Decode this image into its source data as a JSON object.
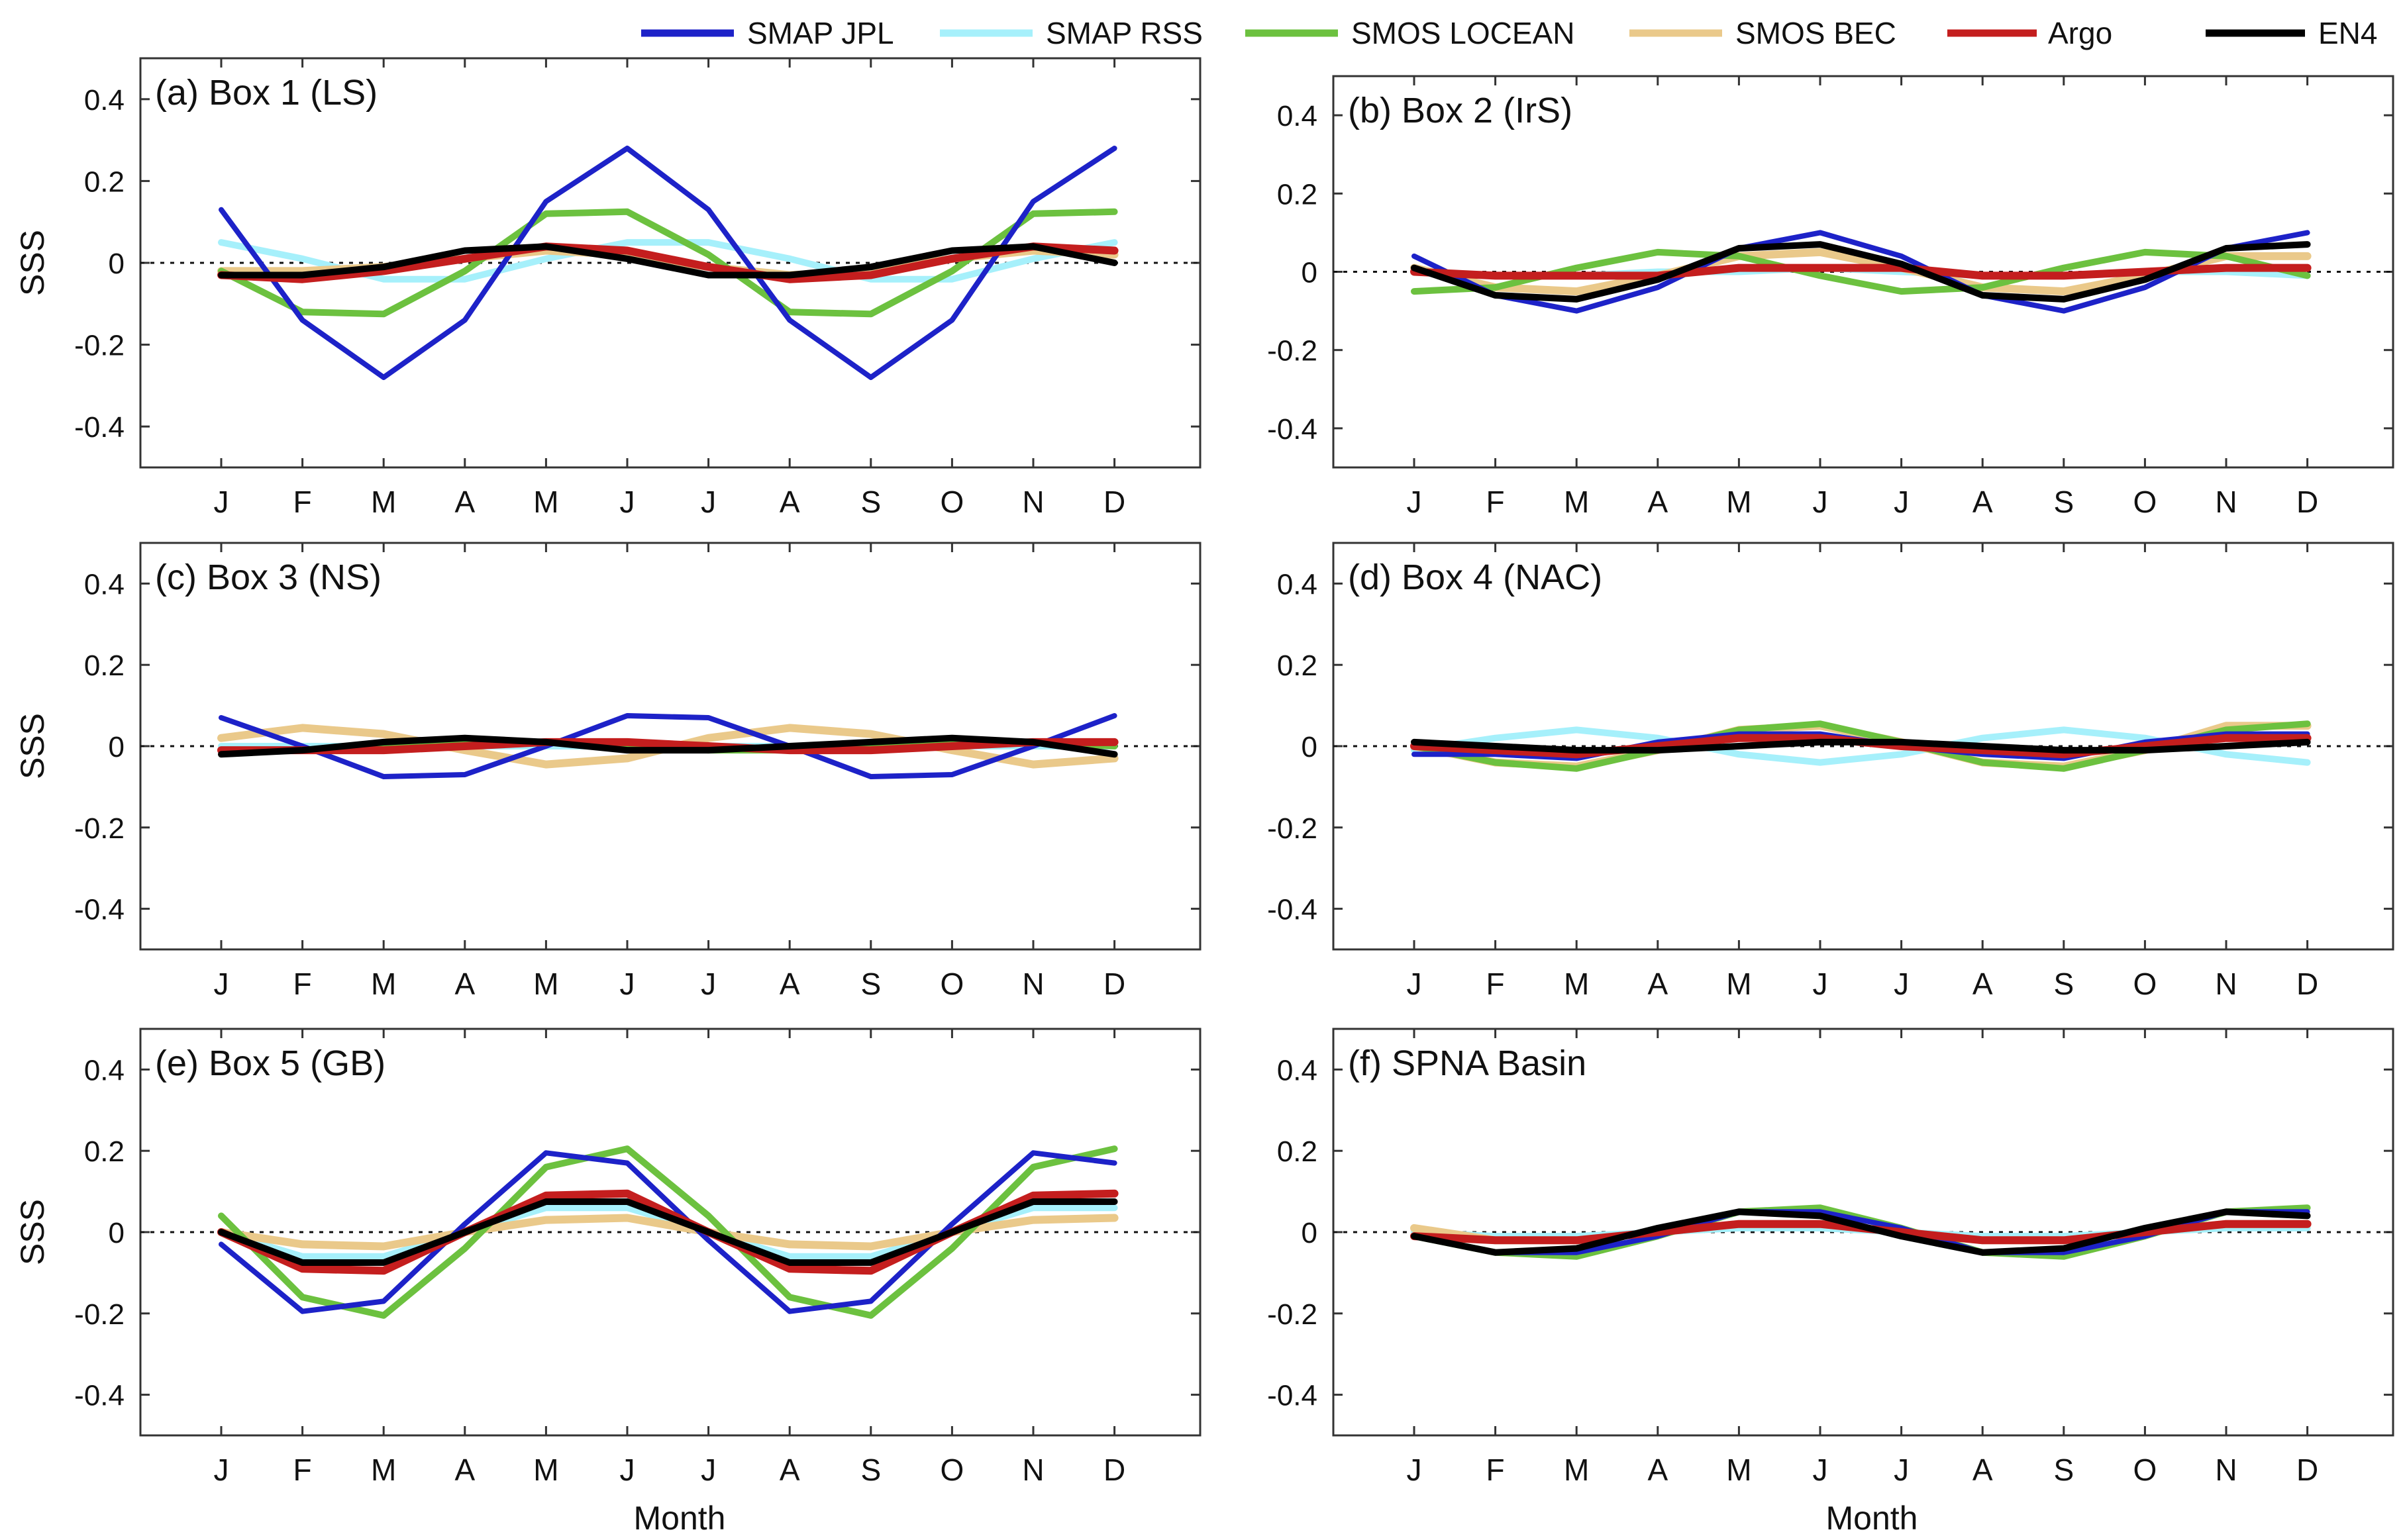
{
  "figure": {
    "xlabel": "Month",
    "ylabel": "SSS"
  },
  "legend": [
    {
      "name": "SMAP JPL",
      "color": "#1d22c8"
    },
    {
      "name": "SMAP RSS",
      "color": "#a6f0fb"
    },
    {
      "name": "SMOS LOCEAN",
      "color": "#6cc13f"
    },
    {
      "name": "SMOS BEC",
      "color": "#eac98a"
    },
    {
      "name": "Argo",
      "color": "#c41e1e"
    },
    {
      "name": "EN4",
      "color": "#000000"
    }
  ],
  "chart_data": [
    {
      "type": "line",
      "title": "(a) Box 1 (LS)",
      "xlabel": "",
      "ylabel": "SSS",
      "ylim": [
        -0.5,
        0.5
      ],
      "yticks": [
        "0.4",
        "0.2",
        "0",
        "-0.2",
        "-0.4"
      ],
      "yticks_values": [
        0.4,
        0.2,
        0,
        -0.2,
        -0.4
      ],
      "categories": [
        "J",
        "F",
        "M",
        "A",
        "M",
        "J",
        "J",
        "A",
        "S",
        "O",
        "N",
        "D"
      ],
      "series": [
        {
          "name": "SMAP RSS",
          "values": [
            0.05,
            0.01,
            -0.04,
            -0.04,
            0.01,
            0.05,
            0.05,
            0.01,
            -0.04,
            -0.04,
            0.01,
            0.05
          ]
        },
        {
          "name": "SMOS BEC",
          "values": [
            -0.02,
            -0.02,
            -0.01,
            0.01,
            0.03,
            0.02,
            -0.01,
            -0.03,
            -0.02,
            0.01,
            0.03,
            0.02
          ]
        },
        {
          "name": "SMOS LOCEAN",
          "values": [
            -0.02,
            -0.12,
            -0.125,
            -0.02,
            0.12,
            0.125,
            0.02,
            -0.12,
            -0.125,
            -0.02,
            0.12,
            0.125
          ]
        },
        {
          "name": "SMAP JPL",
          "values": [
            0.13,
            -0.14,
            -0.28,
            -0.14,
            0.15,
            0.28,
            0.13,
            -0.14,
            -0.28,
            -0.14,
            0.15,
            0.28
          ]
        },
        {
          "name": "Argo",
          "values": [
            -0.03,
            -0.04,
            -0.02,
            0.01,
            0.04,
            0.03,
            -0.01,
            -0.04,
            -0.03,
            0.01,
            0.04,
            0.03
          ]
        },
        {
          "name": "EN4",
          "values": [
            -0.03,
            -0.03,
            -0.01,
            0.03,
            0.04,
            0.01,
            -0.03,
            -0.03,
            -0.01,
            0.03,
            0.04,
            0.0
          ]
        }
      ]
    },
    {
      "type": "line",
      "title": "(b) Box 2 (IrS)",
      "xlabel": "",
      "ylabel": "",
      "ylim": [
        -0.5,
        0.5
      ],
      "yticks": [
        "0.4",
        "0.2",
        "0",
        "-0.2",
        "-0.4"
      ],
      "yticks_values": [
        0.4,
        0.2,
        0,
        -0.2,
        -0.4
      ],
      "categories": [
        "J",
        "F",
        "M",
        "A",
        "M",
        "J",
        "J",
        "A",
        "S",
        "O",
        "N",
        "D"
      ],
      "series": [
        {
          "name": "SMAP RSS",
          "values": [
            0.0,
            -0.01,
            -0.01,
            0.0,
            0.0,
            0.01,
            0.0,
            -0.01,
            -0.01,
            0.0,
            0.0,
            -0.01
          ]
        },
        {
          "name": "SMOS BEC",
          "values": [
            0.01,
            -0.04,
            -0.05,
            -0.01,
            0.04,
            0.05,
            0.01,
            -0.04,
            -0.05,
            -0.01,
            0.04,
            0.04
          ]
        },
        {
          "name": "SMOS LOCEAN",
          "values": [
            -0.05,
            -0.04,
            0.01,
            0.05,
            0.04,
            -0.01,
            -0.05,
            -0.04,
            0.01,
            0.05,
            0.04,
            -0.01
          ]
        },
        {
          "name": "SMAP JPL",
          "values": [
            0.04,
            -0.06,
            -0.1,
            -0.04,
            0.06,
            0.1,
            0.04,
            -0.06,
            -0.1,
            -0.04,
            0.06,
            0.1
          ]
        },
        {
          "name": "Argo",
          "values": [
            0.0,
            -0.01,
            -0.01,
            -0.01,
            0.01,
            0.01,
            0.01,
            -0.01,
            -0.01,
            0.0,
            0.01,
            0.01
          ]
        },
        {
          "name": "EN4",
          "values": [
            0.01,
            -0.06,
            -0.07,
            -0.02,
            0.06,
            0.07,
            0.02,
            -0.06,
            -0.07,
            -0.02,
            0.06,
            0.07
          ]
        }
      ]
    },
    {
      "type": "line",
      "title": "(c) Box 3 (NS)",
      "xlabel": "",
      "ylabel": "SSS",
      "ylim": [
        -0.5,
        0.5
      ],
      "yticks": [
        "0.4",
        "0.2",
        "0",
        "-0.2",
        "-0.4"
      ],
      "yticks_values": [
        0.4,
        0.2,
        0,
        -0.2,
        -0.4
      ],
      "categories": [
        "J",
        "F",
        "M",
        "A",
        "M",
        "J",
        "J",
        "A",
        "S",
        "O",
        "N",
        "D"
      ],
      "series": [
        {
          "name": "SMAP RSS",
          "values": [
            0.0,
            0.0,
            0.0,
            0.0,
            0.0,
            0.0,
            0.0,
            0.0,
            0.0,
            0.0,
            0.0,
            0.0
          ]
        },
        {
          "name": "SMOS BEC",
          "values": [
            0.02,
            0.045,
            0.03,
            -0.01,
            -0.045,
            -0.03,
            0.02,
            0.045,
            0.03,
            -0.01,
            -0.045,
            -0.03
          ]
        },
        {
          "name": "SMOS LOCEAN",
          "values": [
            -0.01,
            -0.01,
            0.0,
            0.01,
            0.01,
            0.0,
            -0.01,
            -0.01,
            0.0,
            0.01,
            0.01,
            0.0
          ]
        },
        {
          "name": "SMAP JPL",
          "values": [
            0.07,
            0.0,
            -0.075,
            -0.07,
            0.0,
            0.075,
            0.07,
            0.0,
            -0.075,
            -0.07,
            0.0,
            0.075
          ]
        },
        {
          "name": "Argo",
          "values": [
            -0.01,
            -0.01,
            -0.01,
            0.0,
            0.01,
            0.01,
            0.0,
            -0.01,
            -0.01,
            0.0,
            0.01,
            0.01
          ]
        },
        {
          "name": "EN4",
          "values": [
            -0.02,
            -0.01,
            0.01,
            0.02,
            0.01,
            -0.01,
            -0.01,
            0.0,
            0.01,
            0.02,
            0.01,
            -0.02
          ]
        }
      ]
    },
    {
      "type": "line",
      "title": "(d) Box 4 (NAC)",
      "xlabel": "",
      "ylabel": "",
      "ylim": [
        -0.5,
        0.5
      ],
      "yticks": [
        "0.4",
        "0.2",
        "0",
        "-0.2",
        "-0.4"
      ],
      "yticks_values": [
        0.4,
        0.2,
        0,
        -0.2,
        -0.4
      ],
      "categories": [
        "J",
        "F",
        "M",
        "A",
        "M",
        "J",
        "J",
        "A",
        "S",
        "O",
        "N",
        "D"
      ],
      "series": [
        {
          "name": "SMAP RSS",
          "values": [
            -0.01,
            0.02,
            0.04,
            0.02,
            -0.02,
            -0.04,
            -0.02,
            0.02,
            0.04,
            0.02,
            -0.02,
            -0.04
          ]
        },
        {
          "name": "SMOS BEC",
          "values": [
            0.0,
            -0.04,
            -0.05,
            -0.01,
            0.04,
            0.05,
            0.01,
            -0.04,
            -0.05,
            -0.01,
            0.05,
            0.05
          ]
        },
        {
          "name": "SMOS LOCEAN",
          "values": [
            0.0,
            -0.04,
            -0.055,
            -0.01,
            0.04,
            0.055,
            0.01,
            -0.04,
            -0.055,
            -0.01,
            0.04,
            0.055
          ]
        },
        {
          "name": "SMAP JPL",
          "values": [
            -0.02,
            -0.02,
            -0.03,
            0.01,
            0.03,
            0.03,
            0.0,
            -0.02,
            -0.03,
            0.01,
            0.03,
            0.03
          ]
        },
        {
          "name": "Argo",
          "values": [
            0.0,
            -0.01,
            -0.02,
            0.0,
            0.02,
            0.02,
            0.0,
            -0.01,
            -0.02,
            0.0,
            0.02,
            0.02
          ]
        },
        {
          "name": "EN4",
          "values": [
            0.01,
            0.0,
            -0.01,
            -0.01,
            0.0,
            0.01,
            0.01,
            0.0,
            -0.01,
            -0.01,
            0.0,
            0.01
          ]
        }
      ]
    },
    {
      "type": "line",
      "title": "(e) Box 5 (GB)",
      "xlabel": "Month",
      "ylabel": "SSS",
      "ylim": [
        -0.5,
        0.5
      ],
      "yticks": [
        "0.4",
        "0.2",
        "0",
        "-0.2",
        "-0.4"
      ],
      "yticks_values": [
        0.4,
        0.2,
        0,
        -0.2,
        -0.4
      ],
      "categories": [
        "J",
        "F",
        "M",
        "A",
        "M",
        "J",
        "J",
        "A",
        "S",
        "O",
        "N",
        "D"
      ],
      "series": [
        {
          "name": "SMAP RSS",
          "values": [
            0.0,
            -0.06,
            -0.06,
            0.0,
            0.06,
            0.06,
            0.0,
            -0.06,
            -0.06,
            0.0,
            0.06,
            0.06
          ]
        },
        {
          "name": "SMOS BEC",
          "values": [
            0.0,
            -0.03,
            -0.035,
            0.0,
            0.03,
            0.035,
            0.0,
            -0.03,
            -0.035,
            0.0,
            0.03,
            0.035
          ]
        },
        {
          "name": "SMOS LOCEAN",
          "values": [
            0.04,
            -0.16,
            -0.205,
            -0.04,
            0.16,
            0.205,
            0.04,
            -0.16,
            -0.205,
            -0.04,
            0.16,
            0.205
          ]
        },
        {
          "name": "SMAP JPL",
          "values": [
            -0.03,
            -0.195,
            -0.17,
            0.02,
            0.195,
            0.17,
            -0.02,
            -0.195,
            -0.17,
            0.02,
            0.195,
            0.17
          ]
        },
        {
          "name": "Argo",
          "values": [
            0.0,
            -0.09,
            -0.095,
            0.0,
            0.09,
            0.095,
            0.0,
            -0.09,
            -0.095,
            0.0,
            0.09,
            0.095
          ]
        },
        {
          "name": "EN4",
          "values": [
            0.0,
            -0.075,
            -0.075,
            0.0,
            0.075,
            0.075,
            0.0,
            -0.075,
            -0.075,
            0.0,
            0.075,
            0.075
          ]
        }
      ]
    },
    {
      "type": "line",
      "title": "(f) SPNA Basin",
      "xlabel": "Month",
      "ylabel": "",
      "ylim": [
        -0.5,
        0.5
      ],
      "yticks": [
        "0.4",
        "0.2",
        "0",
        "-0.2",
        "-0.4"
      ],
      "yticks_values": [
        0.4,
        0.2,
        0,
        -0.2,
        -0.4
      ],
      "categories": [
        "J",
        "F",
        "M",
        "A",
        "M",
        "J",
        "J",
        "A",
        "S",
        "O",
        "N",
        "D"
      ],
      "series": [
        {
          "name": "SMAP RSS",
          "values": [
            0.0,
            -0.01,
            -0.01,
            0.0,
            0.01,
            0.01,
            0.0,
            -0.01,
            -0.01,
            0.0,
            0.01,
            0.01
          ]
        },
        {
          "name": "SMOS BEC",
          "values": [
            0.01,
            -0.02,
            -0.02,
            0.0,
            0.02,
            0.02,
            0.0,
            -0.02,
            -0.02,
            0.0,
            0.02,
            0.02
          ]
        },
        {
          "name": "SMOS LOCEAN",
          "values": [
            -0.01,
            -0.05,
            -0.06,
            -0.01,
            0.05,
            0.06,
            0.01,
            -0.05,
            -0.06,
            -0.01,
            0.05,
            0.06
          ]
        },
        {
          "name": "SMAP JPL",
          "values": [
            -0.01,
            -0.05,
            -0.05,
            -0.01,
            0.05,
            0.05,
            0.01,
            -0.05,
            -0.05,
            -0.01,
            0.05,
            0.05
          ]
        },
        {
          "name": "Argo",
          "values": [
            -0.01,
            -0.02,
            -0.02,
            0.0,
            0.02,
            0.02,
            0.0,
            -0.02,
            -0.02,
            0.0,
            0.02,
            0.02
          ]
        },
        {
          "name": "EN4",
          "values": [
            -0.01,
            -0.05,
            -0.04,
            0.01,
            0.05,
            0.04,
            -0.01,
            -0.05,
            -0.04,
            0.01,
            0.05,
            0.04
          ]
        }
      ]
    }
  ]
}
